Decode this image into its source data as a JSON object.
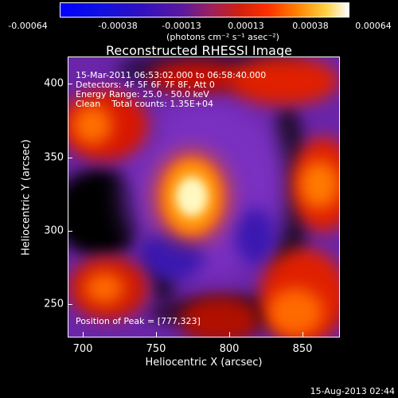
{
  "colorbar": {
    "ticks": [
      "-0.00064",
      "-0.00038",
      "-0.00013",
      "0.00013",
      "0.00038",
      "0.00064"
    ],
    "units": "(photons cm⁻² s⁻¹ asec⁻²)"
  },
  "title": "Reconstructed RHESSI Image",
  "annotation": {
    "time_range": "15-Mar-2011 06:53:02.000 to 06:58:40.000",
    "detectors": "Detectors: 4F 5F 6F 7F 8F, Att 0",
    "energy_range": "Energy Range: 25.0 - 50.0 keV",
    "clean_counts": "Clean    Total counts: 1.35E+04",
    "peak_position": "Position of Peak = [777,323]"
  },
  "axes": {
    "x_label": "Heliocentric X (arcsec)",
    "y_label": "Heliocentric Y (arcsec)",
    "x_ticks": [
      "700",
      "750",
      "800",
      "850"
    ],
    "y_ticks": [
      "400",
      "350",
      "300",
      "250"
    ]
  },
  "footer": {
    "timestamp": "15-Aug-2013 02:44"
  }
}
